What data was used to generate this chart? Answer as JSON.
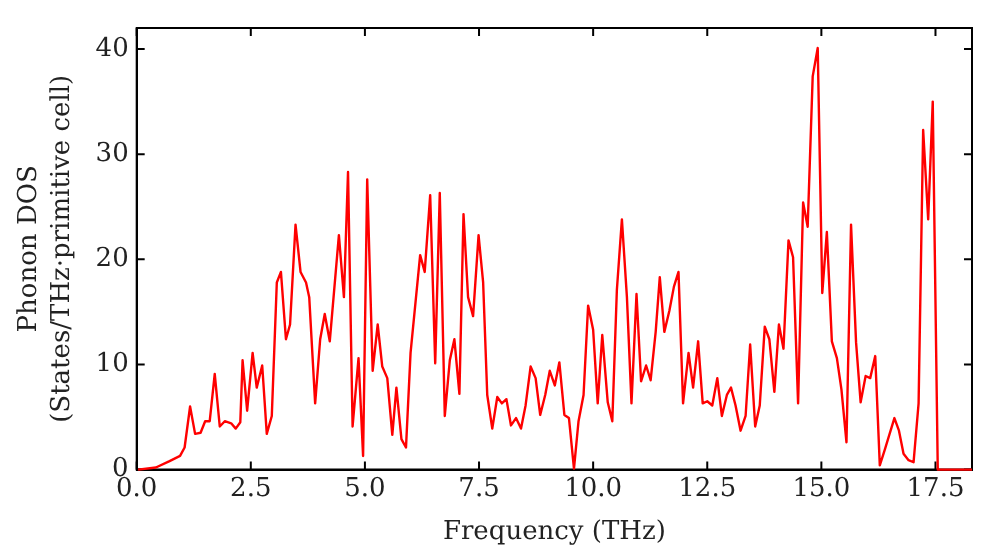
{
  "chart_data": {
    "type": "line",
    "xlabel": "Frequency (THz)",
    "ylabel": "Phonon DOS\n(States/THz·primitive cell)",
    "xlim": [
      0,
      18.3
    ],
    "ylim": [
      0,
      42
    ],
    "xticks": [
      {
        "value": 0,
        "label": "0.0"
      },
      {
        "value": 2.5,
        "label": "2.5"
      },
      {
        "value": 5,
        "label": "5.0"
      },
      {
        "value": 7.5,
        "label": "7.5"
      },
      {
        "value": 10,
        "label": "10.0"
      },
      {
        "value": 12.5,
        "label": "12.5"
      },
      {
        "value": 15,
        "label": "15.0"
      },
      {
        "value": 17.5,
        "label": "17.5"
      }
    ],
    "yticks": [
      0,
      10,
      20,
      30,
      40
    ],
    "grid": false,
    "legend": false,
    "marker": "none",
    "line_style": "solid",
    "series": [
      {
        "color": "#ff0000",
        "x": [
          0.03,
          0.42,
          0.72,
          0.95,
          1.05,
          1.17,
          1.28,
          1.4,
          1.5,
          1.6,
          1.71,
          1.82,
          1.93,
          2.07,
          2.17,
          2.27,
          2.32,
          2.42,
          2.54,
          2.63,
          2.75,
          2.85,
          2.96,
          3.07,
          3.16,
          3.27,
          3.36,
          3.48,
          3.59,
          3.71,
          3.78,
          3.91,
          4.02,
          4.12,
          4.23,
          4.43,
          4.54,
          4.63,
          4.73,
          4.86,
          4.96,
          5.05,
          5.17,
          5.28,
          5.38,
          5.49,
          5.6,
          5.69,
          5.8,
          5.9,
          6.0,
          6.21,
          6.31,
          6.43,
          6.54,
          6.64,
          6.75,
          6.86,
          6.96,
          7.07,
          7.16,
          7.26,
          7.37,
          7.49,
          7.59,
          7.68,
          7.79,
          7.9,
          8.0,
          8.1,
          8.2,
          8.31,
          8.42,
          8.52,
          8.63,
          8.74,
          8.84,
          8.95,
          9.05,
          9.16,
          9.26,
          9.37,
          9.47,
          9.58,
          9.68,
          9.79,
          9.89,
          10.0,
          10.1,
          10.2,
          10.32,
          10.42,
          10.52,
          10.63,
          10.74,
          10.84,
          10.95,
          11.05,
          11.16,
          11.26,
          11.37,
          11.46,
          11.56,
          11.67,
          11.77,
          11.87,
          11.97,
          12.09,
          12.19,
          12.3,
          12.4,
          12.5,
          12.61,
          12.72,
          12.82,
          12.93,
          13.02,
          13.12,
          13.23,
          13.34,
          13.44,
          13.55,
          13.65,
          13.76,
          13.86,
          13.97,
          14.07,
          14.17,
          14.28,
          14.38,
          14.49,
          14.6,
          14.7,
          14.81,
          14.92,
          15.02,
          15.12,
          15.23,
          15.34,
          15.44,
          15.55,
          15.65,
          15.76,
          15.86,
          15.97,
          16.07,
          16.18,
          16.28,
          16.39,
          16.6,
          16.7,
          16.8,
          16.91,
          17.02,
          17.13,
          17.23,
          17.34,
          17.44,
          17.55,
          18.3
        ],
        "values": [
          0,
          0.2,
          0.8,
          1.3,
          2.1,
          6,
          3.4,
          3.5,
          4.6,
          4.6,
          9.1,
          4.1,
          4.6,
          4.4,
          3.9,
          4.5,
          10.4,
          5.6,
          11.1,
          7.8,
          9.9,
          3.4,
          5.1,
          17.8,
          18.8,
          12.4,
          13.8,
          23.3,
          18.8,
          17.8,
          16.4,
          6.3,
          12.4,
          14.8,
          12.2,
          22.3,
          16.4,
          28.3,
          4.1,
          10.6,
          1.3,
          27.6,
          9.4,
          13.8,
          9.8,
          8.7,
          3.3,
          7.8,
          2.9,
          2.1,
          11.1,
          20.4,
          18.8,
          26.1,
          10.1,
          26.3,
          5.1,
          10.4,
          12.4,
          7.2,
          24.3,
          16.4,
          14.6,
          22.3,
          17.8,
          7.1,
          3.9,
          6.9,
          6.3,
          6.7,
          4.2,
          4.9,
          3.9,
          6.1,
          9.8,
          8.7,
          5.2,
          7.1,
          9.4,
          8,
          10.2,
          5.2,
          4.9,
          0.1,
          4.6,
          7.1,
          15.6,
          13.3,
          6.3,
          12.8,
          6.4,
          4.6,
          17.1,
          23.8,
          16.4,
          6.3,
          16.7,
          8.4,
          9.9,
          8.5,
          13.1,
          18.3,
          13.1,
          15.1,
          17.4,
          18.8,
          6.3,
          11.1,
          7.8,
          12.2,
          6.3,
          6.5,
          6.1,
          8.7,
          5.1,
          7.1,
          7.8,
          6.1,
          3.7,
          5.1,
          11.9,
          4.1,
          6.1,
          13.6,
          12.4,
          7.4,
          13.8,
          11.5,
          21.8,
          20.2,
          6.3,
          25.4,
          23.1,
          37.4,
          40.1,
          16.8,
          22.6,
          12.2,
          10.6,
          7.6,
          2.6,
          23.3,
          12.1,
          6.4,
          8.9,
          8.7,
          10.8,
          0.4,
          1.9,
          4.9,
          3.7,
          1.5,
          0.9,
          0.7,
          6.3,
          32.3,
          23.8,
          35,
          0,
          0
        ]
      }
    ]
  }
}
